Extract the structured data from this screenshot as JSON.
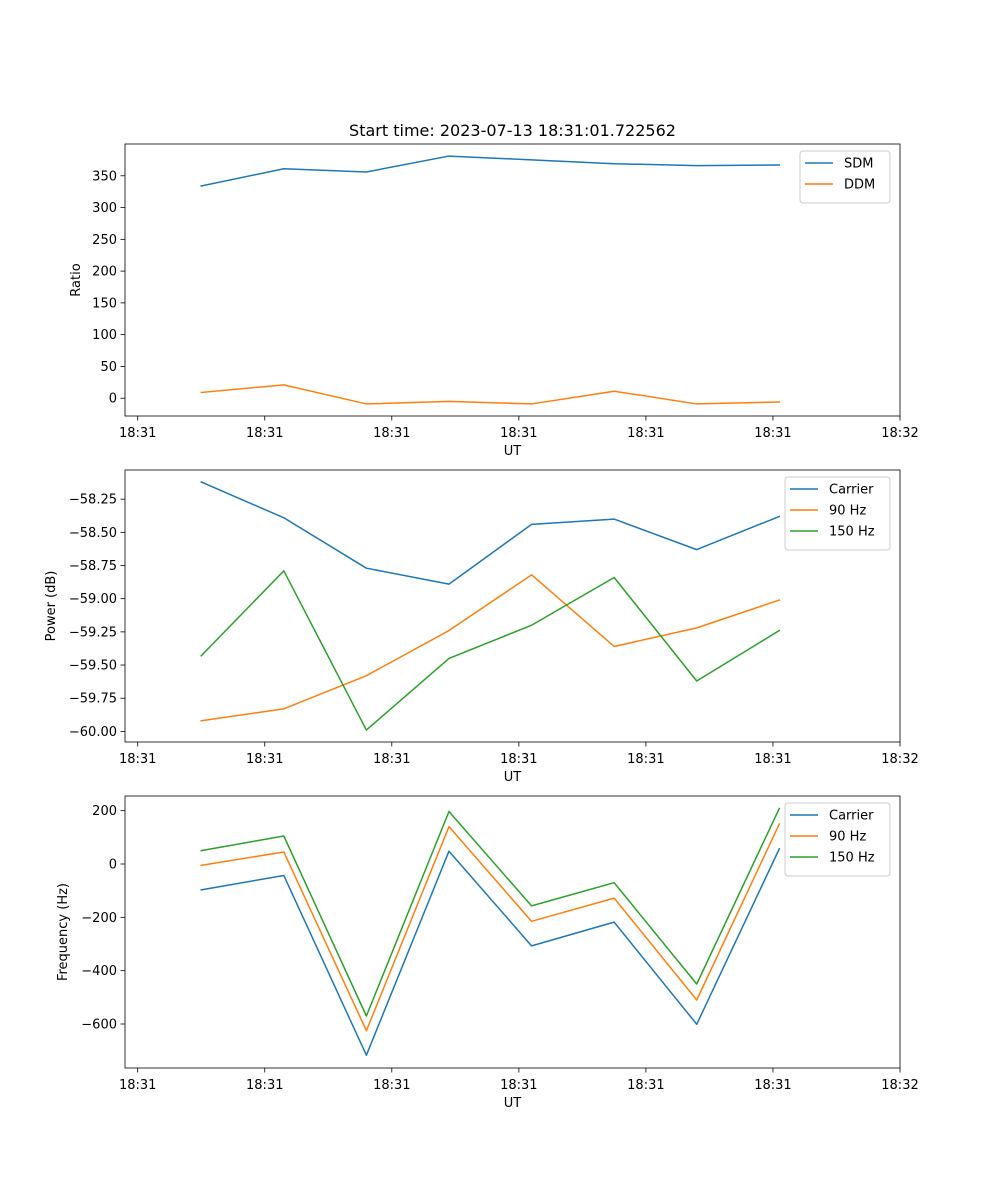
{
  "title": "Start time: 2023-07-13 18:31:01.722562",
  "colors": {
    "c0": "#1f77b4",
    "c1": "#ff7f0e",
    "c2": "#2ca02c"
  },
  "chart_data": [
    {
      "type": "line",
      "title": "Start time: 2023-07-13 18:31:01.722562",
      "xlabel": "UT",
      "ylabel": "Ratio",
      "xlim": [
        0,
        12.2
      ],
      "ylim": [
        -28,
        400
      ],
      "xticks": [
        0.2,
        2.2,
        4.2,
        6.2,
        8.2,
        10.2,
        12.2
      ],
      "xtick_labels": [
        "18:31",
        "18:31",
        "18:31",
        "18:31",
        "18:31",
        "18:31",
        "18:32"
      ],
      "yticks": [
        0,
        50,
        100,
        150,
        200,
        250,
        300,
        350
      ],
      "ytick_labels": [
        "0",
        "50",
        "100",
        "150",
        "200",
        "250",
        "300",
        "350"
      ],
      "x": [
        1.2,
        2.5,
        3.8,
        5.1,
        6.4,
        7.7,
        9.0,
        10.3
      ],
      "series": [
        {
          "name": "SDM",
          "color": "#1f77b4",
          "values": [
            334,
            361,
            356,
            381,
            375,
            369,
            366,
            367
          ]
        },
        {
          "name": "DDM",
          "color": "#ff7f0e",
          "values": [
            9,
            21,
            -9,
            -5,
            -9,
            11,
            -9,
            -6
          ]
        }
      ],
      "legend": "top-right"
    },
    {
      "type": "line",
      "title": "",
      "xlabel": "UT",
      "ylabel": "Power (dB)",
      "xlim": [
        0,
        12.2
      ],
      "ylim": [
        -60.08,
        -58.03
      ],
      "xticks": [
        0.2,
        2.2,
        4.2,
        6.2,
        8.2,
        10.2,
        12.2
      ],
      "xtick_labels": [
        "18:31",
        "18:31",
        "18:31",
        "18:31",
        "18:31",
        "18:31",
        "18:32"
      ],
      "yticks": [
        -60.0,
        -59.75,
        -59.5,
        -59.25,
        -59.0,
        -58.75,
        -58.5,
        -58.25
      ],
      "ytick_labels": [
        "−60.00",
        "−59.75",
        "−59.50",
        "−59.25",
        "−59.00",
        "−58.75",
        "−58.50",
        "−58.25"
      ],
      "x": [
        1.2,
        2.5,
        3.8,
        5.1,
        6.4,
        7.7,
        9.0,
        10.3
      ],
      "series": [
        {
          "name": "Carrier",
          "color": "#1f77b4",
          "values": [
            -58.12,
            -58.39,
            -58.77,
            -58.89,
            -58.44,
            -58.4,
            -58.63,
            -58.38
          ]
        },
        {
          "name": "90 Hz",
          "color": "#ff7f0e",
          "values": [
            -59.92,
            -59.83,
            -59.58,
            -59.24,
            -58.82,
            -59.36,
            -59.22,
            -59.01
          ]
        },
        {
          "name": "150 Hz",
          "color": "#2ca02c",
          "values": [
            -59.43,
            -58.79,
            -59.99,
            -59.45,
            -59.2,
            -58.84,
            -59.62,
            -59.24
          ]
        }
      ],
      "legend": "top-right"
    },
    {
      "type": "line",
      "title": "",
      "xlabel": "UT",
      "ylabel": "Frequency (Hz)",
      "xlim": [
        0,
        12.2
      ],
      "ylim": [
        -765,
        255
      ],
      "xticks": [
        0.2,
        2.2,
        4.2,
        6.2,
        8.2,
        10.2,
        12.2
      ],
      "xtick_labels": [
        "18:31",
        "18:31",
        "18:31",
        "18:31",
        "18:31",
        "18:31",
        "18:32"
      ],
      "yticks": [
        -600,
        -400,
        -200,
        0,
        200
      ],
      "ytick_labels": [
        "−600",
        "−400",
        "−200",
        "0",
        "200"
      ],
      "x": [
        1.2,
        2.5,
        3.8,
        5.1,
        6.4,
        7.7,
        9.0,
        10.3
      ],
      "series": [
        {
          "name": "Carrier",
          "color": "#1f77b4",
          "values": [
            -97,
            -43,
            -717,
            48,
            -307,
            -218,
            -601,
            57
          ]
        },
        {
          "name": "90 Hz",
          "color": "#ff7f0e",
          "values": [
            -5,
            45,
            -625,
            140,
            -215,
            -128,
            -510,
            150
          ]
        },
        {
          "name": "150 Hz",
          "color": "#2ca02c",
          "values": [
            50,
            105,
            -570,
            197,
            -157,
            -70,
            -450,
            208
          ]
        }
      ],
      "legend": "top-right"
    }
  ]
}
